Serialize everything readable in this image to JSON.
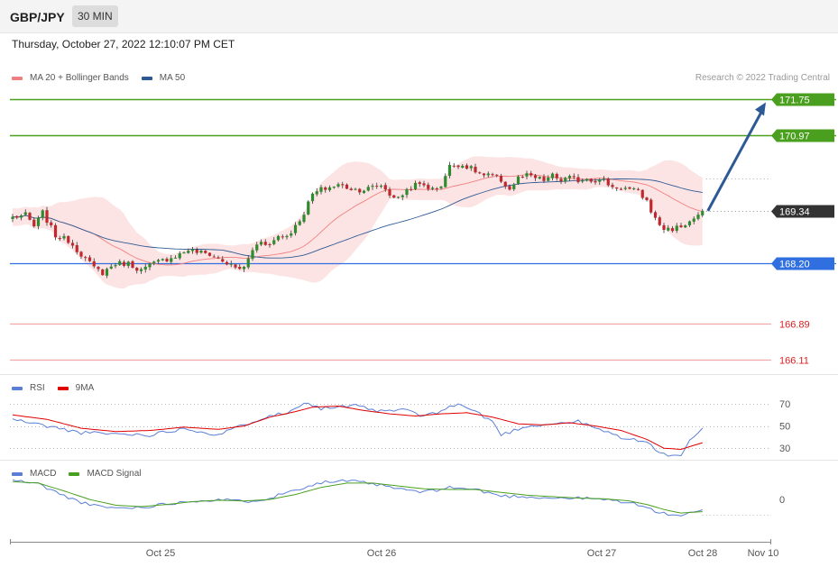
{
  "header": {
    "pair": "GBP/JPY",
    "timeframe": "30 MIN"
  },
  "date_text": "Thursday, October 27, 2022 12:10:07 PM CET",
  "credit": "Research © 2022 Trading Central",
  "colors": {
    "ma20": "#f08080",
    "ma50": "#2d5a94",
    "bands": "#fde4e4",
    "resistance": "#4aa01e",
    "support": "#f4a8a8",
    "pivot": "#2f6fe0",
    "rsi": "#5b7fd6",
    "rsi_ma": "#e00000",
    "macd": "#5b7fd6",
    "macd_signal": "#4aa01e",
    "up": "#2e8b2e",
    "down": "#c0282d",
    "arrow": "#2d5a94"
  },
  "chart_data": [
    {
      "type": "candlestick",
      "title": "",
      "legend": [
        {
          "name": "MA 20 + Bollinger Bands",
          "color": "#f08080"
        },
        {
          "name": "MA 50",
          "color": "#2d5a94"
        }
      ],
      "ylim": [
        165.9,
        172.15
      ],
      "levels": [
        {
          "value": 171.75,
          "label": "171.75",
          "kind": "resistance"
        },
        {
          "value": 170.97,
          "label": "170.97",
          "kind": "resistance"
        },
        {
          "value": 169.34,
          "label": "169.34",
          "kind": "current"
        },
        {
          "value": 168.2,
          "label": "168.20",
          "kind": "pivot"
        },
        {
          "value": 166.89,
          "label": "166.89",
          "kind": "support"
        },
        {
          "value": 166.11,
          "label": "166.11",
          "kind": "support"
        }
      ],
      "x_ticks": [
        "Oct 25",
        "Oct 26",
        "Oct 27",
        "Oct 28",
        "Nov 10"
      ],
      "target": 171.75,
      "close_path": [
        [
          0,
          169.2
        ],
        [
          3,
          169.25
        ],
        [
          5,
          169.0
        ],
        [
          7,
          169.3
        ],
        [
          10,
          168.8
        ],
        [
          13,
          168.7
        ],
        [
          15,
          168.5
        ],
        [
          17,
          168.3
        ],
        [
          19,
          168.1
        ],
        [
          21,
          168.0
        ],
        [
          24,
          168.2
        ],
        [
          27,
          168.2
        ],
        [
          30,
          168.05
        ],
        [
          33,
          168.2
        ],
        [
          36,
          168.3
        ],
        [
          39,
          168.4
        ],
        [
          41,
          168.5
        ],
        [
          43,
          168.45
        ],
        [
          46,
          168.4
        ],
        [
          48,
          168.3
        ],
        [
          50,
          168.2
        ],
        [
          52,
          168.1
        ],
        [
          54,
          168.1
        ],
        [
          56,
          168.5
        ],
        [
          58,
          168.7
        ],
        [
          60,
          168.6
        ],
        [
          62,
          168.8
        ],
        [
          64,
          168.8
        ],
        [
          66,
          169.0
        ],
        [
          68,
          169.3
        ],
        [
          70,
          169.7
        ],
        [
          72,
          169.8
        ],
        [
          74,
          169.85
        ],
        [
          76,
          169.9
        ],
        [
          78,
          169.85
        ],
        [
          80,
          169.8
        ],
        [
          82,
          169.8
        ],
        [
          84,
          169.85
        ],
        [
          86,
          169.9
        ],
        [
          88,
          169.7
        ],
        [
          90,
          169.6
        ],
        [
          92,
          169.8
        ],
        [
          94,
          169.9
        ],
        [
          96,
          169.9
        ],
        [
          98,
          169.8
        ],
        [
          100,
          169.9
        ],
        [
          102,
          170.3
        ],
        [
          104,
          170.35
        ],
        [
          106,
          170.3
        ],
        [
          108,
          170.2
        ],
        [
          110,
          170.1
        ],
        [
          112,
          170.1
        ],
        [
          114,
          170.0
        ],
        [
          116,
          169.8
        ],
        [
          118,
          170.05
        ],
        [
          120,
          170.1
        ],
        [
          122,
          170.05
        ],
        [
          124,
          170.0
        ],
        [
          126,
          170.1
        ],
        [
          128,
          170.0
        ],
        [
          130,
          170.05
        ],
        [
          132,
          170.0
        ],
        [
          134,
          170.05
        ],
        [
          136,
          170.0
        ],
        [
          138,
          170.0
        ],
        [
          140,
          169.85
        ],
        [
          142,
          169.85
        ],
        [
          144,
          169.8
        ],
        [
          146,
          169.75
        ],
        [
          148,
          169.55
        ],
        [
          150,
          169.15
        ],
        [
          152,
          168.95
        ],
        [
          154,
          168.95
        ],
        [
          156,
          169.0
        ],
        [
          158,
          169.1
        ],
        [
          160,
          169.25
        ],
        [
          161,
          169.34
        ]
      ]
    },
    {
      "type": "line",
      "title": "",
      "legend": [
        {
          "name": "RSI",
          "color": "#5b7fd6"
        },
        {
          "name": "9MA",
          "color": "#e00000"
        }
      ],
      "ylim": [
        18,
        83
      ],
      "y_ticks": [
        70,
        50,
        30
      ],
      "series": [
        {
          "name": "RSI",
          "values": [
            [
              0,
              56
            ],
            [
              8,
              50
            ],
            [
              16,
              44
            ],
            [
              24,
              43
            ],
            [
              32,
              42
            ],
            [
              40,
              48
            ],
            [
              48,
              42
            ],
            [
              56,
              54
            ],
            [
              60,
              60
            ],
            [
              64,
              61
            ],
            [
              68,
              72
            ],
            [
              72,
              66
            ],
            [
              80,
              68
            ],
            [
              86,
              63
            ],
            [
              92,
              65
            ],
            [
              96,
              58
            ],
            [
              100,
              64
            ],
            [
              104,
              70
            ],
            [
              108,
              63
            ],
            [
              112,
              54
            ],
            [
              114,
              42
            ],
            [
              120,
              50
            ],
            [
              126,
              52
            ],
            [
              132,
              54
            ],
            [
              136,
              48
            ],
            [
              142,
              40
            ],
            [
              148,
              35
            ],
            [
              152,
              24
            ],
            [
              156,
              24
            ],
            [
              158,
              36
            ],
            [
              161,
              47
            ]
          ]
        },
        {
          "name": "9MA",
          "values": [
            [
              0,
              60
            ],
            [
              8,
              56
            ],
            [
              16,
              48
            ],
            [
              24,
              45
            ],
            [
              32,
              46
            ],
            [
              40,
              49
            ],
            [
              48,
              47
            ],
            [
              54,
              50
            ],
            [
              60,
              58
            ],
            [
              66,
              63
            ],
            [
              70,
              67
            ],
            [
              76,
              68
            ],
            [
              82,
              64
            ],
            [
              88,
              61
            ],
            [
              94,
              59
            ],
            [
              100,
              61
            ],
            [
              106,
              62
            ],
            [
              112,
              58
            ],
            [
              118,
              52
            ],
            [
              124,
              51
            ],
            [
              130,
              53
            ],
            [
              136,
              50
            ],
            [
              142,
              46
            ],
            [
              148,
              38
            ],
            [
              152,
              30
            ],
            [
              156,
              29
            ],
            [
              161,
              35
            ]
          ]
        }
      ]
    },
    {
      "type": "line",
      "title": "",
      "legend": [
        {
          "name": "MACD",
          "color": "#5b7fd6"
        },
        {
          "name": "MACD Signal",
          "color": "#4aa01e"
        }
      ],
      "ylim": [
        -0.58,
        0.33
      ],
      "y_ticks": [
        0
      ],
      "series": [
        {
          "name": "MACD",
          "values": [
            [
              0,
              0.27
            ],
            [
              6,
              0.22
            ],
            [
              12,
              0.05
            ],
            [
              18,
              -0.08
            ],
            [
              24,
              -0.12
            ],
            [
              30,
              -0.11
            ],
            [
              36,
              -0.06
            ],
            [
              42,
              -0.02
            ],
            [
              48,
              0.0
            ],
            [
              54,
              -0.03
            ],
            [
              60,
              0.02
            ],
            [
              66,
              0.14
            ],
            [
              72,
              0.24
            ],
            [
              78,
              0.26
            ],
            [
              84,
              0.22
            ],
            [
              90,
              0.15
            ],
            [
              96,
              0.1
            ],
            [
              102,
              0.17
            ],
            [
              108,
              0.14
            ],
            [
              114,
              0.05
            ],
            [
              120,
              0.04
            ],
            [
              126,
              0.02
            ],
            [
              132,
              0.02
            ],
            [
              138,
              0.0
            ],
            [
              144,
              -0.04
            ],
            [
              148,
              -0.12
            ],
            [
              152,
              -0.2
            ],
            [
              156,
              -0.22
            ],
            [
              161,
              -0.16
            ]
          ]
        },
        {
          "name": "MACD Signal",
          "values": [
            [
              0,
              0.25
            ],
            [
              6,
              0.23
            ],
            [
              12,
              0.12
            ],
            [
              18,
              0.0
            ],
            [
              24,
              -0.08
            ],
            [
              30,
              -0.1
            ],
            [
              36,
              -0.07
            ],
            [
              42,
              -0.03
            ],
            [
              48,
              -0.01
            ],
            [
              54,
              -0.02
            ],
            [
              60,
              0.0
            ],
            [
              66,
              0.07
            ],
            [
              72,
              0.17
            ],
            [
              78,
              0.23
            ],
            [
              84,
              0.23
            ],
            [
              90,
              0.19
            ],
            [
              96,
              0.15
            ],
            [
              102,
              0.14
            ],
            [
              108,
              0.14
            ],
            [
              114,
              0.1
            ],
            [
              120,
              0.06
            ],
            [
              126,
              0.04
            ],
            [
              132,
              0.02
            ],
            [
              138,
              0.01
            ],
            [
              144,
              -0.02
            ],
            [
              148,
              -0.07
            ],
            [
              152,
              -0.14
            ],
            [
              156,
              -0.19
            ],
            [
              161,
              -0.17
            ]
          ]
        }
      ]
    }
  ]
}
